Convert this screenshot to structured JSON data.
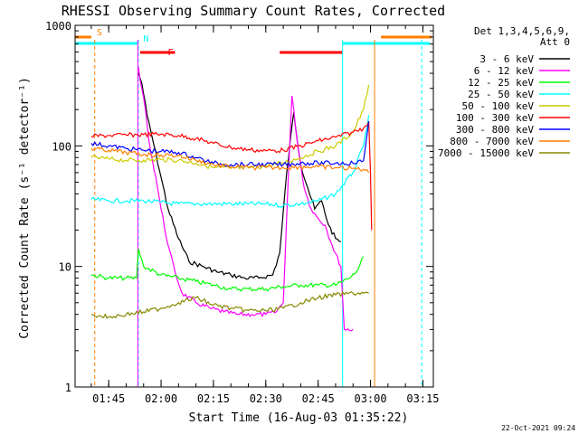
{
  "chart_data": {
    "type": "line",
    "title": "RHESSI Observing Summary Count Rates, Corrected",
    "xlabel": "Start Time (16-Aug-03 01:35:22)",
    "ylabel": "Corrected Count Rate (s⁻¹ detector⁻¹)",
    "y_scale": "log",
    "ylim": [
      1,
      1000
    ],
    "xlim": [
      "01:35:22",
      "03:18:00"
    ],
    "x_ticks": [
      "01:45",
      "02:00",
      "02:15",
      "02:30",
      "02:45",
      "03:00",
      "03:15"
    ],
    "y_ticks": [
      "1",
      "10",
      "100",
      "1000"
    ],
    "grid": false,
    "legend_position": "right",
    "legend_header": [
      "Det 1,3,4,5,6,9,",
      "Att 0"
    ],
    "date_stamp": "22-Oct-2021 09:24",
    "flag_bars": [
      {
        "label": "S",
        "color": "#ff7f00",
        "x_ranges": [
          [
            "01:35:22",
            "01:40:00"
          ],
          [
            "03:03:00",
            "03:18:00"
          ]
        ]
      },
      {
        "label": "N",
        "color": "#00ffff",
        "x_ranges": [
          [
            "01:35:22",
            "01:53:20"
          ],
          [
            "02:52:00",
            "03:17:00"
          ]
        ]
      },
      {
        "label": "F",
        "color": "#ff0000",
        "x_ranges": [
          [
            "01:54:00",
            "02:04:00"
          ],
          [
            "02:34:00",
            "02:52:00"
          ]
        ]
      }
    ],
    "vertical_lines": [
      {
        "x": "01:41:00",
        "color": "#ff7f00",
        "style": "dashed"
      },
      {
        "x": "01:53:30",
        "color": "#00ffff",
        "style": "dashed"
      },
      {
        "x": "01:53:20",
        "color": "#ff00ff",
        "style": "solid"
      },
      {
        "x": "02:52:00",
        "color": "#00ffff",
        "style": "solid"
      },
      {
        "x": "03:01:10",
        "color": "#ff7f00",
        "style": "solid"
      },
      {
        "x": "03:14:40",
        "color": "#00ffff",
        "style": "dashed"
      }
    ],
    "series": [
      {
        "name": "3 - 6 keV",
        "color": "#000000",
        "x": [
          "01:53:30",
          "01:54:30",
          "01:56:00",
          "01:58:00",
          "02:00:00",
          "02:02:00",
          "02:05:00",
          "02:08:00",
          "02:12:00",
          "02:16:00",
          "02:20:00",
          "02:24:00",
          "02:28:00",
          "02:32:00",
          "02:34:00",
          "02:36:00",
          "02:38:00",
          "02:40:00",
          "02:42:00",
          "02:44:00",
          "02:46:00",
          "02:48:00",
          "02:50:00",
          "02:51:30"
        ],
        "values": [
          400,
          330,
          180,
          100,
          55,
          30,
          17,
          11,
          10,
          9,
          8.5,
          8,
          8,
          8.5,
          13,
          60,
          190,
          70,
          45,
          30,
          35,
          22,
          17,
          16
        ]
      },
      {
        "name": "6 - 12 keV",
        "color": "#ff00ff",
        "x": [
          "01:53:30",
          "01:54:00",
          "01:55:00",
          "01:56:00",
          "01:57:00",
          "01:58:30",
          "02:00:00",
          "02:02:00",
          "02:04:00",
          "02:06:00",
          "02:10:00",
          "02:14:00",
          "02:18:00",
          "02:22:00",
          "02:26:00",
          "02:30:00",
          "02:33:00",
          "02:35:00",
          "02:36:30",
          "02:37:30",
          "02:39:00",
          "02:41:00",
          "02:43:00",
          "02:45:00",
          "02:47:00",
          "02:49:00",
          "02:51:30",
          "02:52:30",
          "02:55:00"
        ],
        "values": [
          450,
          350,
          250,
          150,
          90,
          55,
          30,
          15,
          9,
          6,
          5,
          4.5,
          4.2,
          4,
          4,
          4,
          4.2,
          5,
          60,
          260,
          110,
          45,
          30,
          25,
          22,
          15,
          10,
          3,
          3
        ]
      },
      {
        "name": "12 - 25 keV",
        "color": "#00ff00",
        "x": [
          "01:40:00",
          "01:45:00",
          "01:50:00",
          "01:53:00",
          "01:53:30",
          "01:55:00",
          "02:00:00",
          "02:05:00",
          "02:10:00",
          "02:15:00",
          "02:20:00",
          "02:25:00",
          "02:30:00",
          "02:35:00",
          "02:40:00",
          "02:45:00",
          "02:50:00",
          "02:52:00",
          "02:54:00",
          "02:56:00",
          "02:58:00"
        ],
        "values": [
          8.5,
          8,
          8,
          8,
          14,
          10,
          8.5,
          8,
          7.5,
          7,
          6.5,
          6.5,
          6.5,
          6.8,
          7,
          7,
          7,
          7.5,
          8,
          9,
          12
        ]
      },
      {
        "name": "25 - 50 keV",
        "color": "#00ffff",
        "x": [
          "01:40:00",
          "01:45:00",
          "01:50:00",
          "01:55:00",
          "02:00:00",
          "02:05:00",
          "02:10:00",
          "02:15:00",
          "02:20:00",
          "02:25:00",
          "02:30:00",
          "02:35:00",
          "02:40:00",
          "02:45:00",
          "02:50:00",
          "02:55:00",
          "02:58:00",
          "02:59:30"
        ],
        "values": [
          36,
          35,
          35,
          35,
          34,
          33,
          33,
          33,
          33,
          33,
          33,
          32,
          33,
          35,
          40,
          60,
          100,
          180
        ]
      },
      {
        "name": "50 - 100 keV",
        "color": "#cccc00",
        "x": [
          "01:40:00",
          "01:45:00",
          "01:50:00",
          "01:55:00",
          "02:00:00",
          "02:05:00",
          "02:10:00",
          "02:15:00",
          "02:20:00",
          "02:25:00",
          "02:30:00",
          "02:35:00",
          "02:40:00",
          "02:45:00",
          "02:50:00",
          "02:55:00",
          "02:58:00",
          "02:59:30"
        ],
        "values": [
          80,
          78,
          76,
          76,
          77,
          76,
          72,
          66,
          65,
          66,
          68,
          72,
          80,
          90,
          100,
          130,
          200,
          320
        ]
      },
      {
        "name": "100 - 300 keV",
        "color": "#ff0000",
        "x": [
          "01:40:00",
          "01:45:00",
          "01:50:00",
          "01:55:00",
          "02:00:00",
          "02:05:00",
          "02:10:00",
          "02:15:00",
          "02:20:00",
          "02:25:00",
          "02:30:00",
          "02:35:00",
          "02:40:00",
          "02:45:00",
          "02:50:00",
          "02:55:00",
          "02:58:00",
          "02:59:30",
          "03:00:00",
          "03:00:20"
        ],
        "values": [
          120,
          122,
          123,
          124,
          125,
          122,
          115,
          105,
          97,
          93,
          91,
          92,
          100,
          110,
          118,
          130,
          140,
          160,
          60,
          20
        ]
      },
      {
        "name": "300 - 800 keV",
        "color": "#0000ff",
        "x": [
          "01:40:00",
          "01:45:00",
          "01:50:00",
          "01:55:00",
          "02:00:00",
          "02:05:00",
          "02:10:00",
          "02:15:00",
          "02:20:00",
          "02:25:00",
          "02:30:00",
          "02:35:00",
          "02:40:00",
          "02:45:00",
          "02:50:00",
          "02:55:00",
          "02:58:00",
          "02:59:30"
        ],
        "values": [
          105,
          100,
          95,
          92,
          90,
          88,
          80,
          72,
          70,
          70,
          70,
          70,
          72,
          72,
          72,
          72,
          75,
          160
        ]
      },
      {
        "name": "800 - 7000 keV",
        "color": "#ff7f00",
        "x": [
          "01:40:00",
          "01:45:00",
          "01:50:00",
          "01:55:00",
          "02:00:00",
          "02:05:00",
          "02:10:00",
          "02:15:00",
          "02:20:00",
          "02:25:00",
          "02:30:00",
          "02:35:00",
          "02:40:00",
          "02:45:00",
          "02:50:00",
          "02:55:00",
          "02:58:00",
          "02:59:30"
        ],
        "values": [
          95,
          92,
          88,
          85,
          84,
          83,
          76,
          70,
          67,
          66,
          66,
          66,
          67,
          67,
          66,
          65,
          64,
          60
        ]
      },
      {
        "name": "7000 - 15000 keV",
        "color": "#888800",
        "x": [
          "01:40:00",
          "01:45:00",
          "01:50:00",
          "01:55:00",
          "02:00:00",
          "02:05:00",
          "02:10:00",
          "02:15:00",
          "02:20:00",
          "02:25:00",
          "02:30:00",
          "02:35:00",
          "02:40:00",
          "02:45:00",
          "02:50:00",
          "02:55:00",
          "02:58:00",
          "02:59:30"
        ],
        "values": [
          4,
          3.8,
          4,
          4.2,
          4.5,
          5,
          5.5,
          4.8,
          4.5,
          4.3,
          4.3,
          4.5,
          5,
          5.5,
          5.8,
          6,
          6,
          6
        ]
      }
    ]
  }
}
